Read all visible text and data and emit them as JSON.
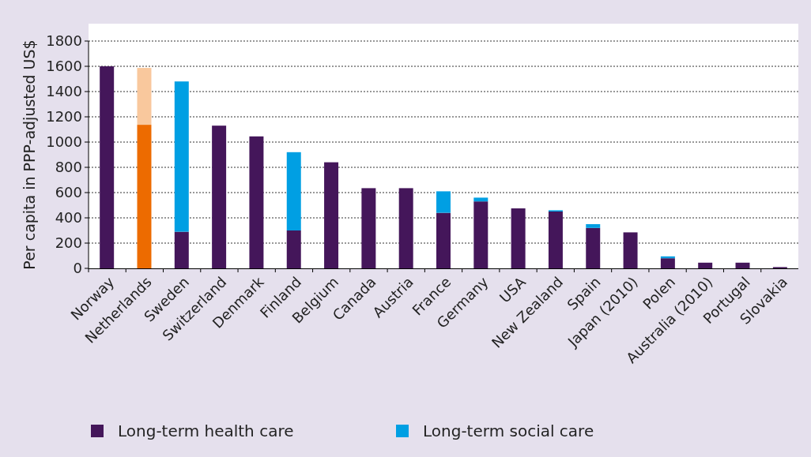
{
  "chart_data": {
    "type": "bar",
    "stacked": true,
    "ylabel": "Per capita in PPP-adjusted US$",
    "categories": [
      "Norway",
      "Netherlands",
      "Sweden",
      "Switzerland",
      "Denmark",
      "Finland",
      "Belgium",
      "Canada",
      "Austria",
      "France",
      "Germany",
      "USA",
      "New Zealand",
      "Spain",
      "Japan (2010)",
      "Polen",
      "Australia (2010)",
      "Portugal",
      "Slovakia"
    ],
    "series": [
      {
        "name": "Long-term health care",
        "color": "#44165a",
        "colors": [
          "#44165a",
          "#ed6b00",
          "#44165a",
          "#44165a",
          "#44165a",
          "#44165a",
          "#44165a",
          "#44165a",
          "#44165a",
          "#44165a",
          "#44165a",
          "#44165a",
          "#44165a",
          "#44165a",
          "#44165a",
          "#44165a",
          "#44165a",
          "#44165a",
          "#44165a"
        ],
        "values": [
          1600,
          1137,
          290,
          1130,
          1045,
          300,
          840,
          635,
          635,
          440,
          530,
          475,
          450,
          320,
          285,
          80,
          45,
          45,
          10
        ]
      },
      {
        "name": "Long-term social care",
        "color": "#009fe3",
        "colors": [
          "#009fe3",
          "#f9c89d",
          "#009fe3",
          "#009fe3",
          "#009fe3",
          "#009fe3",
          "#009fe3",
          "#009fe3",
          "#009fe3",
          "#009fe3",
          "#009fe3",
          "#009fe3",
          "#009fe3",
          "#009fe3",
          "#009fe3",
          "#009fe3",
          "#009fe3",
          "#009fe3",
          "#009fe3"
        ],
        "values": [
          0,
          450,
          1190,
          0,
          0,
          620,
          0,
          0,
          0,
          170,
          30,
          0,
          10,
          30,
          0,
          15,
          0,
          0,
          0
        ]
      }
    ],
    "ylim": [
      0,
      1800
    ],
    "yticks": [
      0,
      200,
      400,
      600,
      800,
      1000,
      1200,
      1400,
      1600,
      1800
    ],
    "grid": "y",
    "legend": "bottom"
  }
}
